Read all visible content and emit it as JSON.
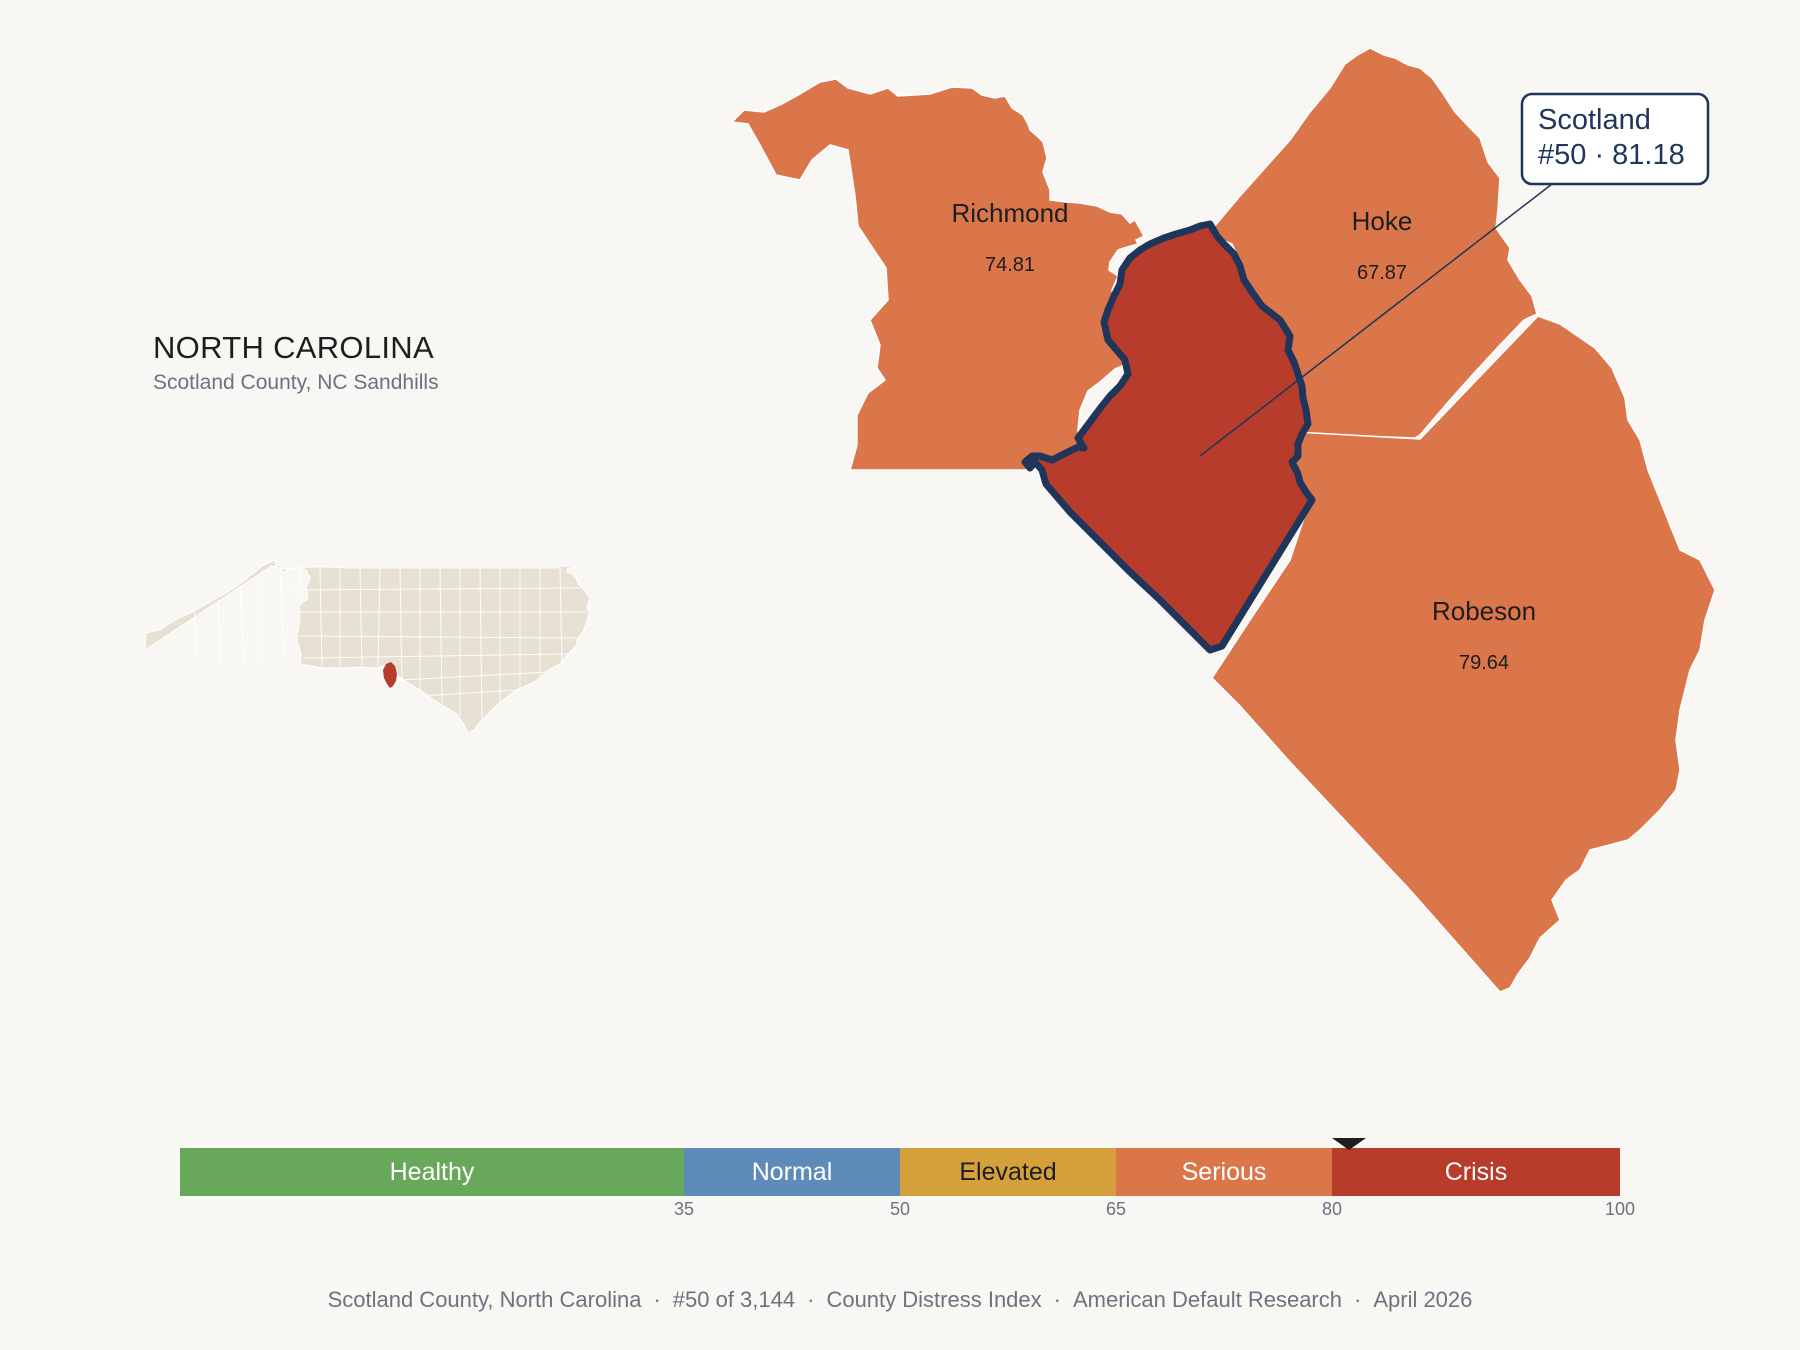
{
  "state_panel": {
    "title": "NORTH CAROLINA",
    "subtitle": "Scotland County, NC Sandhills"
  },
  "map": {
    "counties": [
      {
        "name": "Richmond",
        "value": "74.81",
        "fill": "#db764a"
      },
      {
        "name": "Hoke",
        "value": "67.87",
        "fill": "#db764a"
      },
      {
        "name": "Robeson",
        "value": "79.64",
        "fill": "#db764a"
      },
      {
        "name": "Scotland",
        "value": "81.18",
        "fill": "#b73c2b",
        "highlighted": true
      }
    ],
    "callout": {
      "line1": "Scotland",
      "line2": "#50 · 81.18"
    },
    "highlight_outline_color": "#1f355a"
  },
  "scale": {
    "marker_value": 81.18,
    "bands": [
      {
        "label": "Healthy",
        "min": 0,
        "max": 35,
        "color": "#68a85a",
        "text_color": "#ffffff"
      },
      {
        "label": "Normal",
        "min": 35,
        "max": 50,
        "color": "#5d8bba",
        "text_color": "#ffffff"
      },
      {
        "label": "Elevated",
        "min": 50,
        "max": 65,
        "color": "#d4a03c",
        "text_color": "#1e1e1e"
      },
      {
        "label": "Serious",
        "min": 65,
        "max": 80,
        "color": "#db764a",
        "text_color": "#ffffff"
      },
      {
        "label": "Crisis",
        "min": 80,
        "max": 100,
        "color": "#b73c2b",
        "text_color": "#ffffff"
      }
    ],
    "ticks": [
      "35",
      "50",
      "65",
      "80",
      "100"
    ]
  },
  "footer": {
    "county": "Scotland County, North Carolina",
    "rank": "#50 of 3,144",
    "index": "County Distress Index",
    "org": "American Default Research",
    "date": "April 2026"
  }
}
